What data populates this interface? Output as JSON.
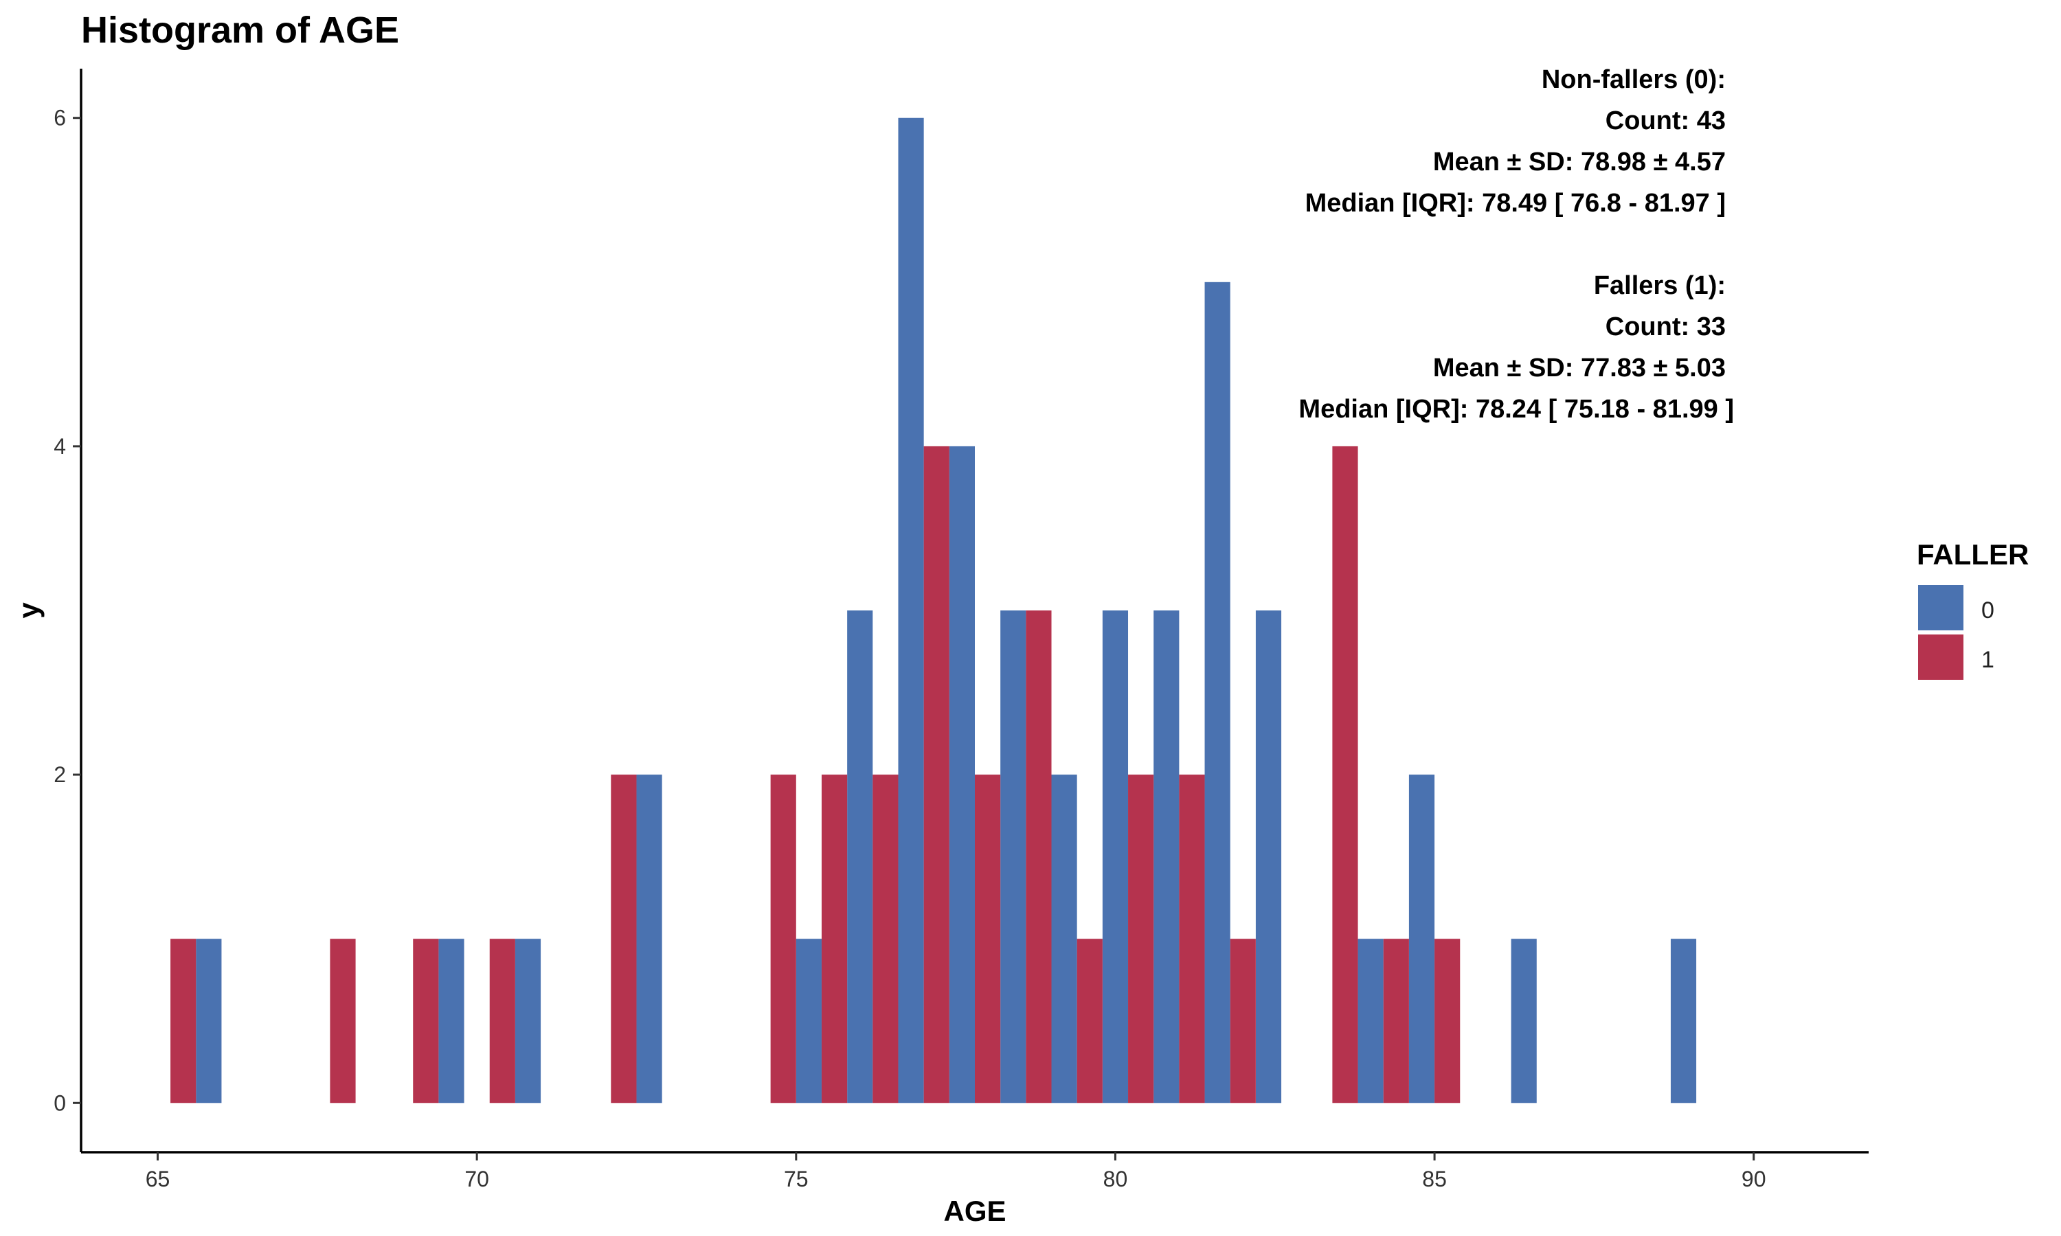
{
  "chart_data": {
    "type": "bar",
    "title": "Histogram of AGE",
    "xlabel": "AGE",
    "ylabel": "y",
    "xlim": [
      63.8,
      91.8
    ],
    "ylim": [
      -0.3,
      6.3
    ],
    "bin_width": 0.8,
    "x_ticks": [
      65,
      70,
      75,
      80,
      85,
      90
    ],
    "y_ticks": [
      0,
      2,
      4,
      6
    ],
    "grid": false,
    "legend_position": "right",
    "legend": {
      "title": "FALLER",
      "entries": [
        {
          "label": "0",
          "color": "#4A72B0"
        },
        {
          "label": "1",
          "color": "#B5334E"
        }
      ]
    },
    "series": [
      {
        "name": "0",
        "color": "#4A72B0",
        "bins": [
          {
            "x": 65.6,
            "count": 1
          },
          {
            "x": 69.4,
            "count": 1
          },
          {
            "x": 70.6,
            "count": 1
          },
          {
            "x": 72.5,
            "count": 2
          },
          {
            "x": 75.0,
            "count": 1
          },
          {
            "x": 75.8,
            "count": 3
          },
          {
            "x": 76.6,
            "count": 6
          },
          {
            "x": 77.4,
            "count": 4
          },
          {
            "x": 78.2,
            "count": 3
          },
          {
            "x": 79.0,
            "count": 2
          },
          {
            "x": 79.8,
            "count": 3
          },
          {
            "x": 80.6,
            "count": 3
          },
          {
            "x": 81.4,
            "count": 5
          },
          {
            "x": 82.2,
            "count": 3
          },
          {
            "x": 83.8,
            "count": 1
          },
          {
            "x": 84.6,
            "count": 2
          },
          {
            "x": 86.2,
            "count": 1
          },
          {
            "x": 88.7,
            "count": 1
          }
        ]
      },
      {
        "name": "1",
        "color": "#B5334E",
        "bins": [
          {
            "x": 65.6,
            "count": 1
          },
          {
            "x": 68.1,
            "count": 1
          },
          {
            "x": 69.4,
            "count": 1
          },
          {
            "x": 70.6,
            "count": 1
          },
          {
            "x": 72.5,
            "count": 2
          },
          {
            "x": 75.0,
            "count": 2
          },
          {
            "x": 75.8,
            "count": 2
          },
          {
            "x": 76.6,
            "count": 2
          },
          {
            "x": 77.4,
            "count": 4
          },
          {
            "x": 78.2,
            "count": 2
          },
          {
            "x": 79.0,
            "count": 3
          },
          {
            "x": 79.8,
            "count": 1
          },
          {
            "x": 80.6,
            "count": 2
          },
          {
            "x": 81.4,
            "count": 2
          },
          {
            "x": 82.2,
            "count": 1
          },
          {
            "x": 83.8,
            "count": 4
          },
          {
            "x": 84.6,
            "count": 1
          },
          {
            "x": 85.4,
            "count": 1
          }
        ]
      }
    ],
    "annotations": [
      "Non-fallers (0):",
      "Count: 43",
      "Mean ± SD: 78.98 ± 4.57",
      "Median [IQR]: 78.49 [ 76.8 - 81.97 ]",
      "Fallers (1):",
      "Count: 33",
      "Mean ± SD: 77.83 ± 5.03",
      "Median [IQR]: 78.24 [ 75.18 - 81.99 ]"
    ]
  }
}
